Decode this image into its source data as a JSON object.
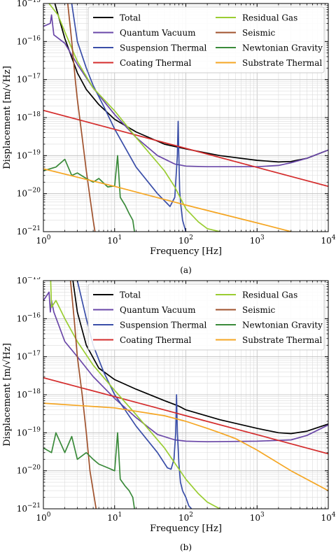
{
  "chart_data": [
    {
      "type": "line",
      "caption": "(a)",
      "xlabel": "Frequency [Hz]",
      "ylabel": "Displacement [m/√Hz]",
      "xscale": "log",
      "yscale": "log",
      "xlim": [
        1,
        10000
      ],
      "ylim": [
        1e-21,
        1e-15
      ],
      "xticks": [
        [
          "10",
          "0"
        ],
        [
          "10",
          "1"
        ],
        [
          "10",
          "2"
        ],
        [
          "10",
          "3"
        ],
        [
          "10",
          "4"
        ]
      ],
      "yticks": [
        [
          "10",
          "−21"
        ],
        [
          "10",
          "−20"
        ],
        [
          "10",
          "−19"
        ],
        [
          "10",
          "−18"
        ],
        [
          "10",
          "−17"
        ],
        [
          "10",
          "−16"
        ],
        [
          "10",
          "−15"
        ]
      ],
      "grid": true,
      "legend_position": "top-right",
      "series": [
        {
          "name": "Total",
          "color": "#000000",
          "x": [
            1.45,
            2,
            3,
            4,
            6,
            10,
            20,
            50,
            100,
            300,
            1000,
            2000,
            3000,
            5000,
            10000
          ],
          "y": [
            1e-15,
            1.2e-16,
            1.5e-17,
            5.5e-18,
            2.2e-18,
            9e-19,
            4.2e-19,
            2e-19,
            1.5e-19,
            1e-19,
            7.5e-20,
            6.8e-20,
            7e-20,
            8.5e-20,
            1.4e-19
          ]
        },
        {
          "name": "Quantum Vacuum",
          "color": "#6a47a8",
          "x": [
            1,
            1.25,
            1.3,
            1.4,
            2,
            3,
            5,
            10,
            20,
            40,
            70,
            100,
            200,
            1000,
            2000,
            3000,
            5000,
            10000
          ],
          "y": [
            2.5e-16,
            3e-16,
            5e-16,
            1.5e-16,
            9e-17,
            2.5e-17,
            6e-18,
            1.2e-18,
            3e-19,
            1e-19,
            6e-20,
            5.3e-20,
            5.1e-20,
            5.1e-20,
            5.5e-20,
            6.5e-20,
            8.5e-20,
            1.4e-19
          ]
        },
        {
          "name": "Suspension Thermal",
          "color": "#3a4ea8",
          "x": [
            2.5,
            3,
            4,
            5,
            7,
            10,
            20,
            40,
            60,
            70,
            76,
            78,
            80,
            82,
            85,
            90,
            100
          ],
          "y": [
            1e-15,
            1e-16,
            2e-17,
            7e-18,
            2e-18,
            5e-19,
            5e-20,
            1e-20,
            4.6e-21,
            8e-21,
            1e-19,
            8e-19,
            8e-20,
            1.2e-20,
            5e-21,
            2e-21,
            1e-21
          ]
        },
        {
          "name": "Coating Thermal",
          "color": "#d42c2c",
          "x": [
            1,
            10,
            100,
            1000,
            10000
          ],
          "y": [
            1.55e-18,
            4.9e-19,
            1.55e-19,
            4.9e-20,
            1.55e-20
          ]
        },
        {
          "name": "Residual Gas",
          "color": "#9acd32",
          "x": [
            1.2,
            1.6,
            2,
            3,
            5,
            10,
            20,
            50,
            70,
            100,
            150,
            200,
            300
          ],
          "y": [
            1e-15,
            5e-16,
            1.8e-16,
            3e-17,
            6e-18,
            1.5e-18,
            3e-19,
            4e-20,
            1.5e-20,
            4e-21,
            1.8e-21,
            1.2e-21,
            1e-21
          ]
        },
        {
          "name": "Seismic",
          "color": "#a0522d",
          "x": [
            2.2,
            2.5,
            2.8,
            3,
            3.5,
            4,
            4.5,
            5,
            5.3
          ],
          "y": [
            1e-15,
            1e-16,
            1e-17,
            3e-18,
            3e-19,
            4e-20,
            8e-21,
            2e-21,
            1e-21
          ]
        },
        {
          "name": "Newtonian Gravity",
          "color": "#3a8a3a",
          "x": [
            1,
            1.5,
            2,
            2.5,
            3,
            4,
            5,
            6,
            8,
            10,
            11,
            12,
            14,
            16,
            18,
            19
          ],
          "y": [
            4e-20,
            5e-20,
            8e-20,
            3e-20,
            3.5e-20,
            2.5e-20,
            2e-20,
            2.5e-20,
            1.5e-20,
            1.6e-20,
            1e-19,
            8e-21,
            5e-21,
            3e-21,
            2e-21,
            1e-21
          ]
        },
        {
          "name": "Substrate Thermal",
          "color": "#f5a623",
          "x": [
            1,
            10,
            100,
            1000,
            3000
          ],
          "y": [
            4.5e-20,
            1.55e-20,
            5e-21,
            1.7e-21,
            1e-21
          ]
        }
      ]
    },
    {
      "type": "line",
      "caption": "(b)",
      "xlabel": "Frequency [Hz]",
      "ylabel": "Displacement [m/√Hz]",
      "xscale": "log",
      "yscale": "log",
      "xlim": [
        1,
        10000
      ],
      "ylim": [
        1e-21,
        1e-15
      ],
      "xticks": [
        [
          "10",
          "0"
        ],
        [
          "10",
          "1"
        ],
        [
          "10",
          "2"
        ],
        [
          "10",
          "3"
        ],
        [
          "10",
          "4"
        ]
      ],
      "yticks": [
        [
          "10",
          "−21"
        ],
        [
          "10",
          "−20"
        ],
        [
          "10",
          "−19"
        ],
        [
          "10",
          "−18"
        ],
        [
          "10",
          "−17"
        ],
        [
          "10",
          "−16"
        ],
        [
          "10",
          "−15"
        ]
      ],
      "grid": true,
      "legend_position": "top-right",
      "series": [
        {
          "name": "Total",
          "color": "#000000",
          "x": [
            2.6,
            3,
            4,
            6,
            10,
            20,
            50,
            70,
            80,
            100,
            300,
            1000,
            2000,
            3000,
            5000,
            10000
          ],
          "y": [
            1e-15,
            1.5e-16,
            2e-17,
            5e-18,
            2.5e-18,
            1.4e-18,
            7e-19,
            5.5e-19,
            5e-19,
            4e-19,
            2.2e-19,
            1.3e-19,
            1e-19,
            9.5e-20,
            1.1e-19,
            1.7e-19
          ]
        },
        {
          "name": "Quantum Vacuum",
          "color": "#6a47a8",
          "x": [
            1,
            1.2,
            1.25,
            1.3,
            1.4,
            2,
            3,
            5,
            10,
            20,
            40,
            70,
            100,
            200,
            1000,
            3000,
            5000,
            10000
          ],
          "y": [
            3e-16,
            5e-16,
            1.5e-16,
            3e-16,
            1.5e-16,
            2.5e-17,
            1e-17,
            3e-18,
            8e-19,
            2.5e-19,
            9e-20,
            6.5e-20,
            6e-20,
            5.8e-20,
            6e-20,
            6.5e-20,
            8.5e-20,
            1.6e-19
          ]
        },
        {
          "name": "Suspension Thermal",
          "color": "#3a4ea8",
          "x": [
            3,
            4,
            5,
            7,
            10,
            20,
            40,
            55,
            62,
            68,
            72,
            74,
            76,
            78,
            80,
            84,
            90,
            100,
            110,
            120
          ],
          "y": [
            1e-15,
            1e-16,
            2e-17,
            4e-18,
            1e-18,
            1.5e-19,
            3e-20,
            1.2e-20,
            1.1e-20,
            2e-20,
            1e-19,
            1e-18,
            1e-19,
            4e-20,
            1.5e-20,
            5e-21,
            3e-21,
            2e-21,
            1.2e-21,
            1e-21
          ]
        },
        {
          "name": "Coating Thermal",
          "color": "#d42c2c",
          "x": [
            1,
            10,
            100,
            1000,
            10000
          ],
          "y": [
            2.8e-18,
            8.9e-19,
            2.8e-19,
            8.9e-20,
            2.8e-20
          ]
        },
        {
          "name": "Residual Gas",
          "color": "#9acd32",
          "x": [
            1.25,
            1.3,
            1.5,
            2,
            3,
            5,
            10,
            20,
            50,
            100,
            150,
            200,
            300
          ],
          "y": [
            2e-15,
            2e-16,
            3e-16,
            1e-16,
            2.5e-17,
            6e-18,
            1.3e-18,
            3e-19,
            4e-20,
            6e-21,
            2.5e-21,
            1.5e-21,
            1e-21
          ]
        },
        {
          "name": "Seismic",
          "color": "#a0522d",
          "x": [
            2.4,
            2.7,
            3,
            3.5,
            4,
            4.5,
            5,
            5.5
          ],
          "y": [
            1e-15,
            1e-16,
            1e-17,
            1e-18,
            1e-19,
            1e-20,
            3e-21,
            1e-21
          ]
        },
        {
          "name": "Newtonian Gravity",
          "color": "#3a8a3a",
          "x": [
            1,
            1.3,
            1.5,
            2,
            2.5,
            3,
            4,
            5,
            6,
            8,
            10,
            11,
            12,
            14,
            16,
            18,
            19
          ],
          "y": [
            4e-20,
            3e-20,
            1e-19,
            3e-20,
            8e-20,
            2e-20,
            3e-20,
            2e-20,
            1.5e-20,
            1.2e-20,
            1e-20,
            1e-19,
            6e-21,
            4e-21,
            3e-21,
            2e-21,
            1e-21
          ]
        },
        {
          "name": "Substrate Thermal",
          "color": "#f5a623",
          "x": [
            1,
            10,
            50,
            100,
            200,
            300,
            500,
            1000,
            3000,
            10000
          ],
          "y": [
            6e-19,
            4.5e-19,
            2.8e-19,
            2e-19,
            1.3e-19,
            1e-19,
            7e-20,
            3.5e-20,
            1e-20,
            3e-21
          ]
        }
      ]
    }
  ]
}
